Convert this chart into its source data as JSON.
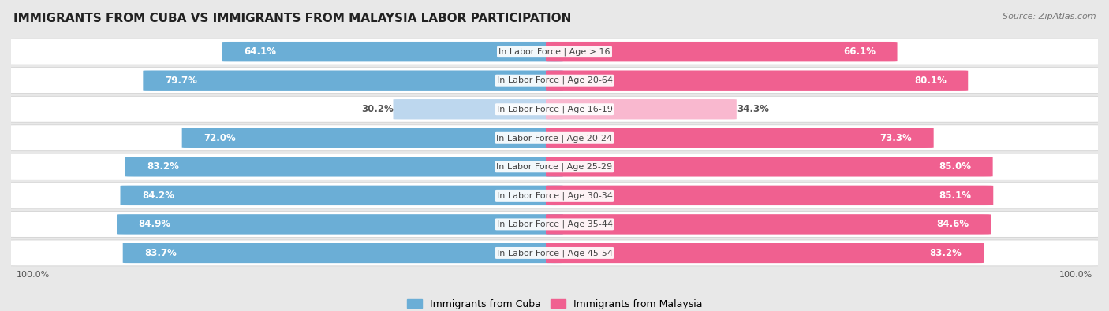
{
  "title": "IMMIGRANTS FROM CUBA VS IMMIGRANTS FROM MALAYSIA LABOR PARTICIPATION",
  "source": "Source: ZipAtlas.com",
  "categories": [
    "In Labor Force | Age > 16",
    "In Labor Force | Age 20-64",
    "In Labor Force | Age 16-19",
    "In Labor Force | Age 20-24",
    "In Labor Force | Age 25-29",
    "In Labor Force | Age 30-34",
    "In Labor Force | Age 35-44",
    "In Labor Force | Age 45-54"
  ],
  "cuba_values": [
    64.1,
    79.7,
    30.2,
    72.0,
    83.2,
    84.2,
    84.9,
    83.7
  ],
  "malaysia_values": [
    66.1,
    80.1,
    34.3,
    73.3,
    85.0,
    85.1,
    84.6,
    83.2
  ],
  "cuba_color": "#6baed6",
  "cuba_color_light": "#bdd7ee",
  "malaysia_color": "#f06090",
  "malaysia_color_light": "#f9b8cf",
  "bg_color": "#e8e8e8",
  "row_bg_color": "#f5f5f5",
  "label_fontsize": 8.5,
  "cat_fontsize": 8.0,
  "title_fontsize": 11,
  "legend_fontsize": 9,
  "max_value": 100.0
}
